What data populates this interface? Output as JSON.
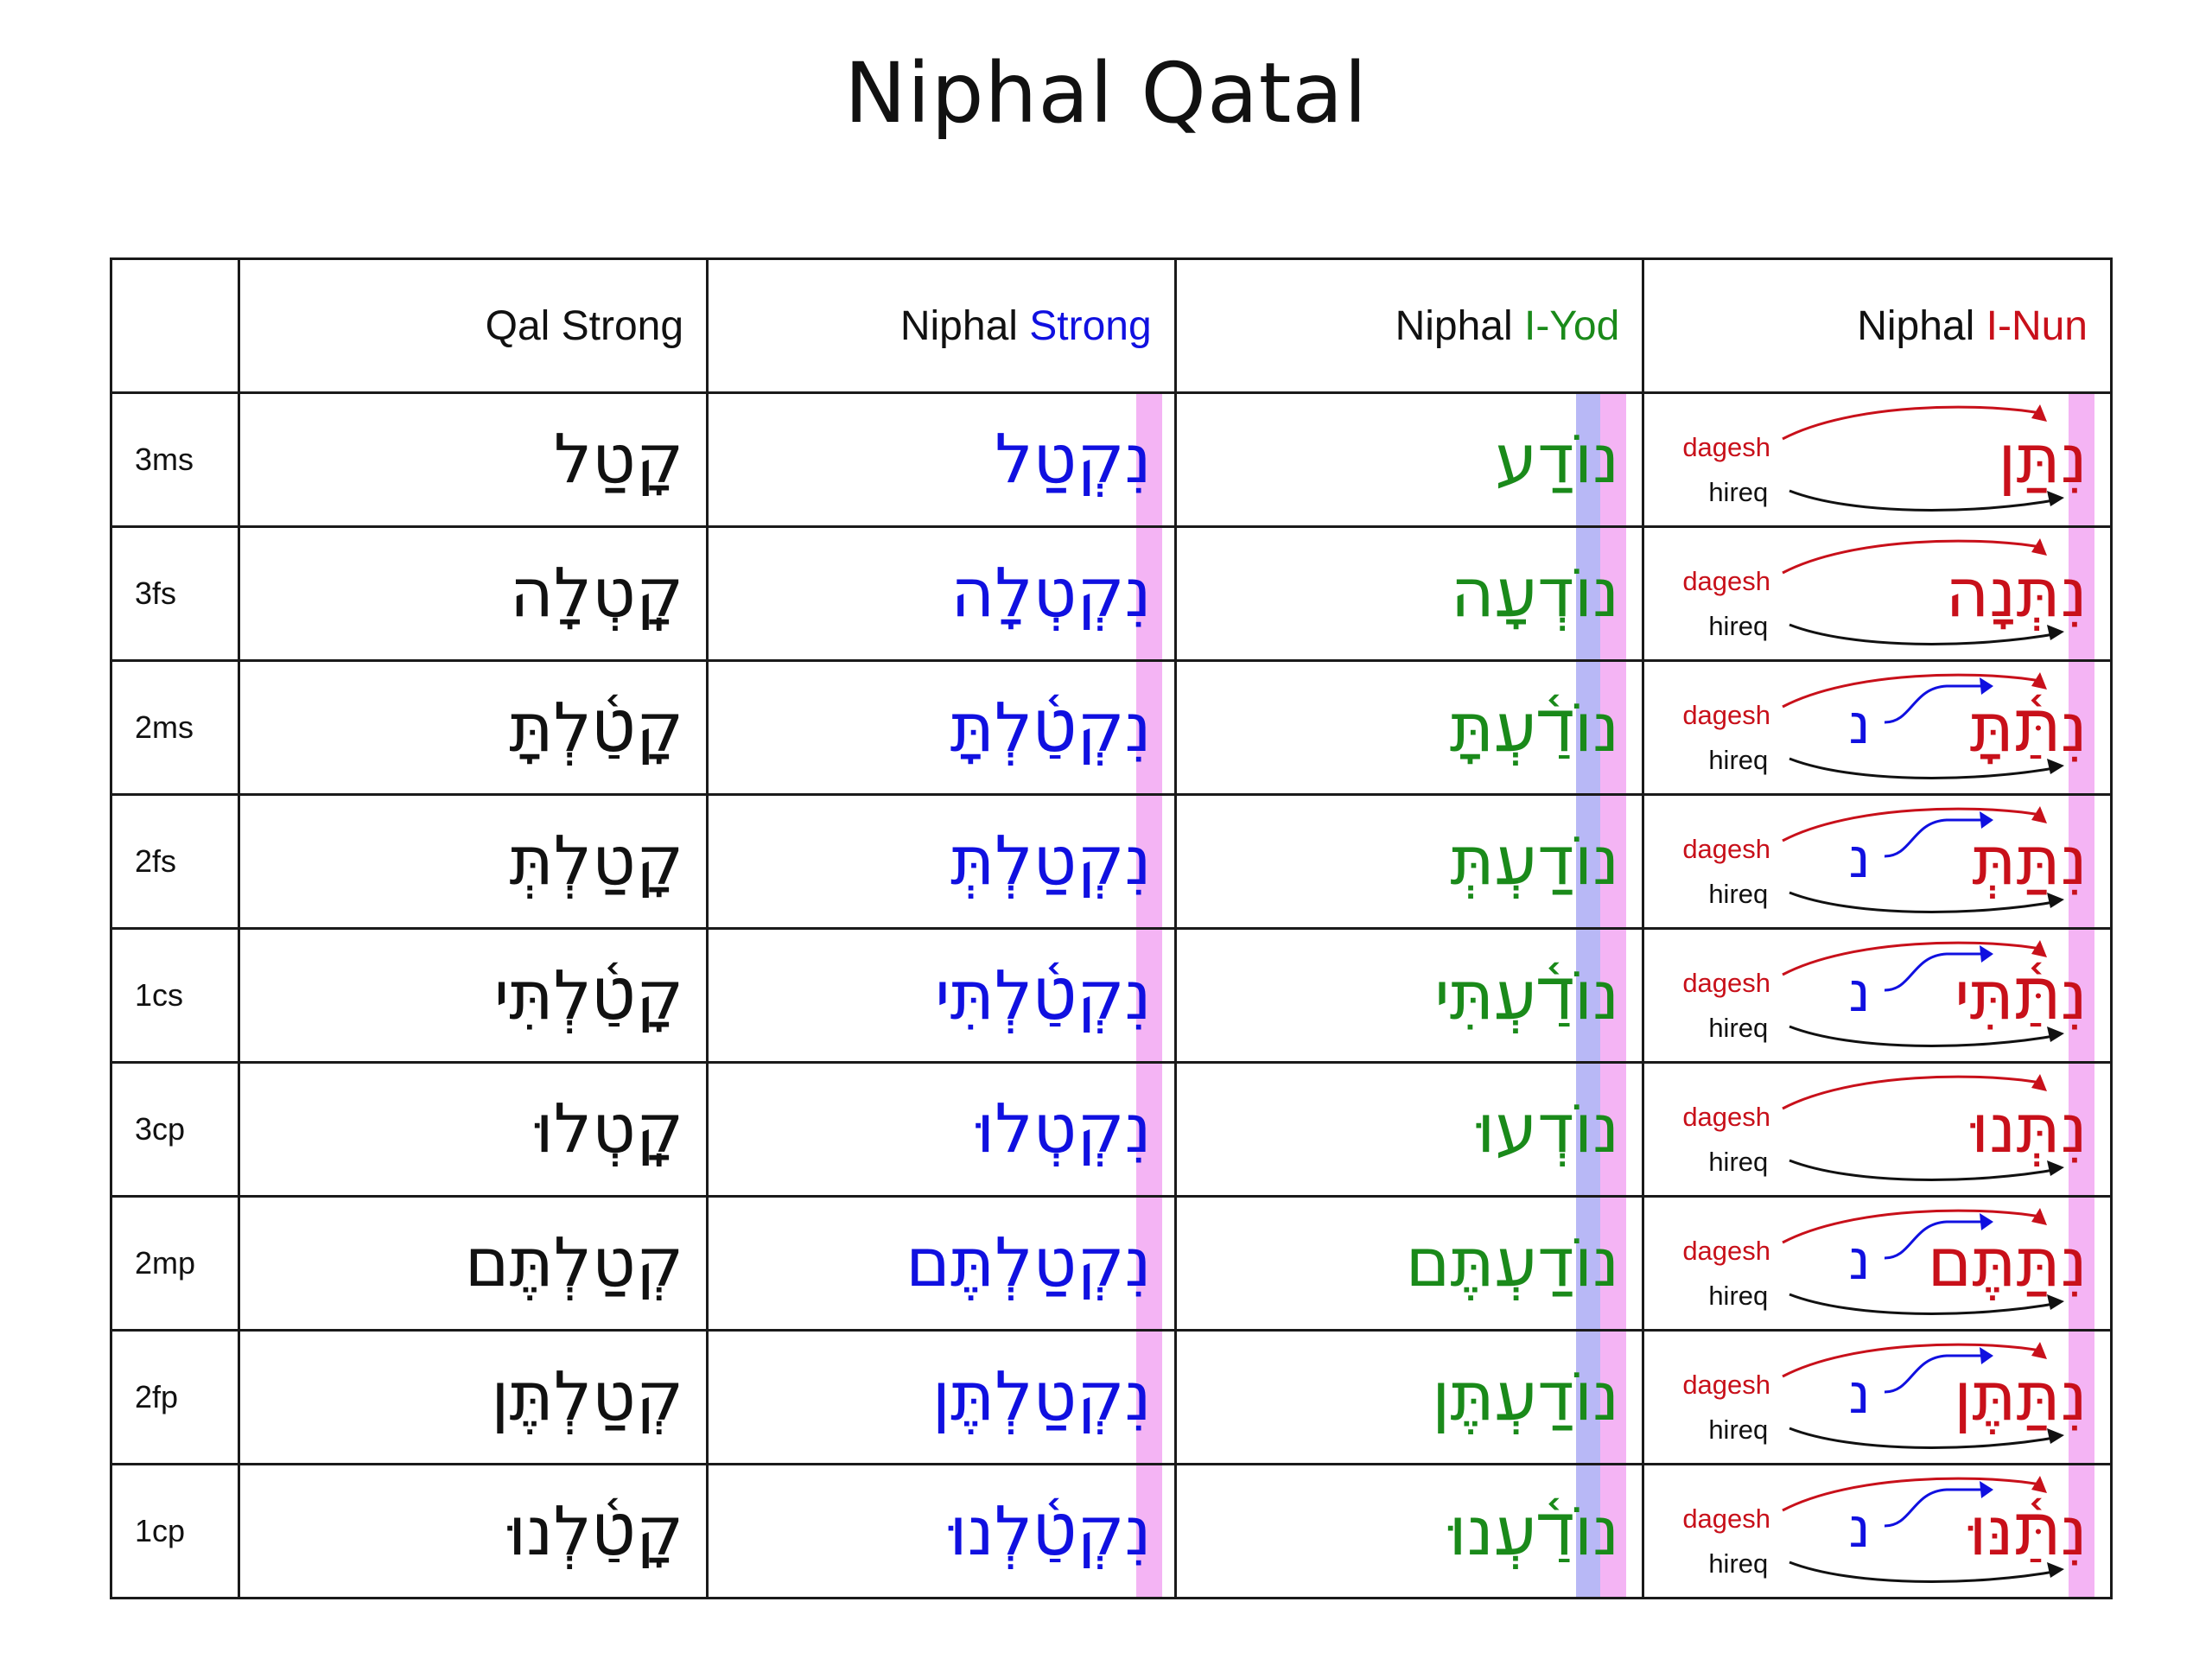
{
  "title": "Niphal Qatal",
  "headers": {
    "empty": "",
    "qal": {
      "text": "Qal Strong"
    },
    "niphal_strong": {
      "prefix": "Niphal ",
      "accent": "Strong"
    },
    "niphal_iyod": {
      "prefix": "Niphal ",
      "accent": "I-Yod"
    },
    "niphal_inun": {
      "prefix": "Niphal ",
      "accent": "I-Nun"
    }
  },
  "colors": {
    "qal": "#111111",
    "niphal_strong": "#1010e0",
    "niphal_iyod": "#1a8a1a",
    "niphal_inun": "#c8101a",
    "highlight_pink": "#f4b4f4",
    "highlight_blue": "#b8b8f6"
  },
  "annotations": {
    "dagesh": "dagesh",
    "hireq": "hireq",
    "assimilated_nun": "נ"
  },
  "rows": [
    {
      "person": "3ms",
      "qal": "קָטַל",
      "niphal_strong": "נִקְטַל",
      "niphal_iyod": "נוֹדַע",
      "niphal_inun": "נִתַּן",
      "show_nun": false
    },
    {
      "person": "3fs",
      "qal": "קָֽטְלָה",
      "niphal_strong": "נִקְטְלָה",
      "niphal_iyod": "נוֹדְעָה",
      "niphal_inun": "נִתְּנָה",
      "show_nun": false
    },
    {
      "person": "2ms",
      "qal": "קָטַ֫לְתָּ",
      "niphal_strong": "נִקְטַ֫לְתָּ",
      "niphal_iyod": "נוֹדַ֫עְתָּ",
      "niphal_inun": "נִתַּ֫תָּ",
      "show_nun": true
    },
    {
      "person": "2fs",
      "qal": "קָטַלְתְּ",
      "niphal_strong": "נִקְטַלְתְּ",
      "niphal_iyod": "נוֹדַעְתְּ",
      "niphal_inun": "נִתַּתְּ",
      "show_nun": true
    },
    {
      "person": "1cs",
      "qal": "קָטַ֫לְתִּי",
      "niphal_strong": "נִקְטַ֫לְתִּי",
      "niphal_iyod": "נוֹדַ֫עְתִּי",
      "niphal_inun": "נִתַּ֫תִּי",
      "show_nun": true
    },
    {
      "person": "3cp",
      "qal": "קָֽטְלוּ",
      "niphal_strong": "נִקְטְלוּ",
      "niphal_iyod": "נוֹדְעוּ",
      "niphal_inun": "נִתְּנוּ",
      "show_nun": false
    },
    {
      "person": "2mp",
      "qal": "קְטַלְתֶּם",
      "niphal_strong": "נִקְטַלְתֶּם",
      "niphal_iyod": "נוֹדַעְתֶּם",
      "niphal_inun": "נִתַּתֶּם",
      "show_nun": true
    },
    {
      "person": "2fp",
      "qal": "קְטַלְתֶּן",
      "niphal_strong": "נִקְטַלְתֶּן",
      "niphal_iyod": "נוֹדַעְתֶּן",
      "niphal_inun": "נִתַּתֶּן",
      "show_nun": true
    },
    {
      "person": "1cp",
      "qal": "קָטַ֫לְנוּ",
      "niphal_strong": "נִקְטַ֫לְנוּ",
      "niphal_iyod": "נוֹדַ֫עְנוּ",
      "niphal_inun": "נִתַּ֫נּוּ",
      "show_nun": true
    }
  ]
}
